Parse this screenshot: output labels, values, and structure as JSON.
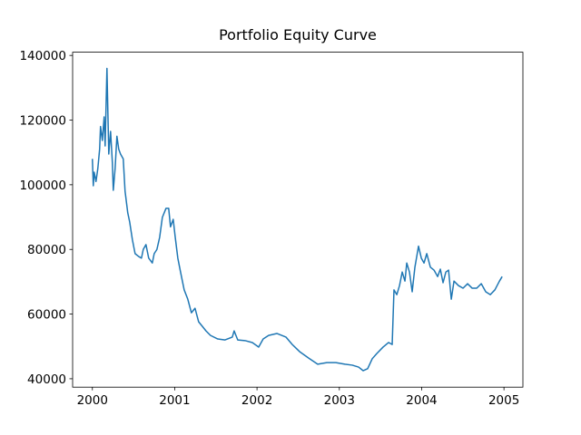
{
  "chart_data": {
    "type": "line",
    "title": "Portfolio Equity Curve",
    "x": [
      2000.0,
      2000.011,
      2000.022,
      2000.044,
      2000.066,
      2000.088,
      2000.099,
      2000.121,
      2000.143,
      2000.155,
      2000.177,
      2000.199,
      2000.221,
      2000.243,
      2000.254,
      2000.276,
      2000.298,
      2000.32,
      2000.342,
      2000.375,
      2000.397,
      2000.43,
      2000.453,
      2000.486,
      2000.519,
      2000.563,
      2000.596,
      2000.618,
      2000.651,
      2000.684,
      2000.728,
      2000.751,
      2000.784,
      2000.817,
      2000.85,
      2000.894,
      2000.927,
      2000.949,
      2000.982,
      2001.004,
      2001.038,
      2001.071,
      2001.115,
      2001.159,
      2001.203,
      2001.247,
      2001.291,
      2001.336,
      2001.38,
      2001.435,
      2001.523,
      2001.611,
      2001.7,
      2001.722,
      2001.766,
      2001.854,
      2001.943,
      2002.02,
      2002.075,
      2002.141,
      2002.241,
      2002.351,
      2002.428,
      2002.517,
      2002.627,
      2002.737,
      2002.848,
      2002.958,
      2003.068,
      2003.157,
      2003.234,
      2003.289,
      2003.344,
      2003.4,
      2003.455,
      2003.532,
      2003.598,
      2003.642,
      2003.653,
      2003.664,
      2003.698,
      2003.731,
      2003.764,
      2003.797,
      2003.819,
      2003.852,
      2003.885,
      2003.918,
      2003.962,
      2003.996,
      2004.029,
      2004.062,
      2004.106,
      2004.15,
      2004.194,
      2004.227,
      2004.26,
      2004.294,
      2004.327,
      2004.36,
      2004.393,
      2004.448,
      2004.503,
      2004.558,
      2004.614,
      2004.669,
      2004.724,
      2004.779,
      2004.834,
      2004.89,
      2004.945,
      2004.978
    ],
    "series": [
      {
        "color": "#1f77b4",
        "values": [
          108000,
          99700,
          103900,
          101000,
          105000,
          111000,
          118000,
          113700,
          121000,
          112000,
          136000,
          109500,
          116500,
          106700,
          98300,
          105000,
          115000,
          111000,
          109500,
          108000,
          98000,
          91300,
          88500,
          83000,
          78700,
          77800,
          77300,
          80000,
          81500,
          77300,
          75800,
          78700,
          80000,
          83700,
          89900,
          92700,
          92700,
          87000,
          89300,
          84300,
          77300,
          73000,
          67500,
          64600,
          60400,
          61800,
          57600,
          56200,
          54800,
          53400,
          52300,
          52000,
          52900,
          54800,
          52000,
          51800,
          51200,
          49800,
          52300,
          53400,
          54000,
          52900,
          50600,
          48400,
          46400,
          44500,
          45000,
          45000,
          44500,
          44200,
          43600,
          42500,
          43100,
          46200,
          47800,
          49800,
          51200,
          50600,
          59000,
          67500,
          66000,
          68800,
          73000,
          70200,
          75800,
          73000,
          66900,
          74500,
          81000,
          77300,
          75800,
          78700,
          74500,
          73600,
          71600,
          73900,
          69700,
          73000,
          73600,
          64600,
          70200,
          68800,
          68000,
          69400,
          68000,
          68000,
          69400,
          66900,
          66000,
          67500,
          70200,
          71600
        ]
      }
    ],
    "xlim": [
      1999.76,
      2005.23
    ],
    "ylim": [
      37400,
      141000
    ],
    "xticks": [
      2000,
      2001,
      2002,
      2003,
      2004,
      2005
    ],
    "yticks": [
      40000,
      60000,
      80000,
      100000,
      120000,
      140000
    ]
  }
}
